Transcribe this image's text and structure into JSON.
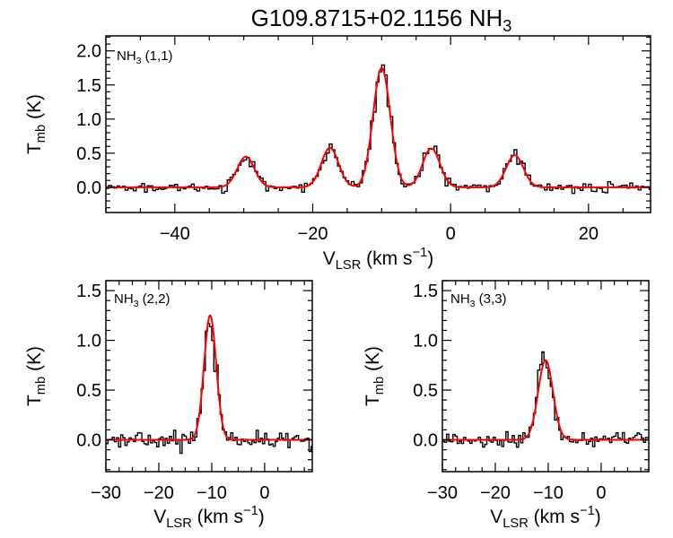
{
  "figure": {
    "title": "G109.8715+02.1156 NH",
    "title_sub": "3"
  },
  "colors": {
    "data": "#000000",
    "fit": "#ff0000"
  },
  "chart_data": [
    {
      "type": "line",
      "id": "p11",
      "label_main": "NH",
      "label_sub": "3",
      "label_rest": " (1,1)",
      "ylabel_main": "T",
      "ylabel_sub": "mb",
      "ylabel_rest": " (K)",
      "xlabel_main": "V",
      "xlabel_sub": "LSR",
      "xlabel_rest": " (km s",
      "xlabel_sup": "−1",
      "xlabel_end": ")",
      "xlim": [
        -50,
        29
      ],
      "ylim": [
        -0.37,
        2.22
      ],
      "xticks": [
        -40,
        -20,
        0,
        20
      ],
      "xtick_labels": [
        "−40",
        "−20",
        "0",
        "20"
      ],
      "yticks": [
        0.0,
        0.5,
        1.0,
        1.5,
        2.0
      ],
      "ytick_labels": [
        "0.0",
        "0.5",
        "1.0",
        "1.5",
        "2.0"
      ],
      "components": [
        {
          "v": -29.7,
          "amp": 0.45,
          "sigma": 1.25
        },
        {
          "v": -17.5,
          "amp": 0.58,
          "sigma": 1.25
        },
        {
          "v": -10.0,
          "amp": 1.75,
          "sigma": 1.25
        },
        {
          "v": -2.8,
          "amp": 0.57,
          "sigma": 1.25
        },
        {
          "v": 9.3,
          "amp": 0.47,
          "sigma": 1.25
        }
      ],
      "spectrum_channel_width_kms": 0.4,
      "spectrum_rms_K": 0.035
    },
    {
      "type": "line",
      "id": "p22",
      "label_main": "NH",
      "label_sub": "3",
      "label_rest": " (2,2)",
      "ylabel_main": "T",
      "ylabel_sub": "mb",
      "ylabel_rest": " (K)",
      "xlabel_main": "V",
      "xlabel_sub": "LSR",
      "xlabel_rest": " (km s",
      "xlabel_sup": "−1",
      "xlabel_end": ")",
      "xlim": [
        -30,
        9
      ],
      "ylim": [
        -0.32,
        1.6
      ],
      "xticks": [
        -30,
        -20,
        -10,
        0
      ],
      "xtick_labels": [
        "−30",
        "−20",
        "−10",
        "0"
      ],
      "yticks": [
        0.0,
        0.5,
        1.0,
        1.5
      ],
      "ytick_labels": [
        "0.0",
        "0.5",
        "1.0",
        "1.5"
      ],
      "components": [
        {
          "v": -10.3,
          "amp": 1.25,
          "sigma": 1.15
        }
      ],
      "spectrum_channel_width_kms": 0.4,
      "spectrum_rms_K": 0.045
    },
    {
      "type": "line",
      "id": "p33",
      "label_main": "NH",
      "label_sub": "3",
      "label_rest": " (3,3)",
      "ylabel_main": "T",
      "ylabel_sub": "mb",
      "ylabel_rest": " (K)",
      "xlabel_main": "V",
      "xlabel_sub": "LSR",
      "xlabel_rest": " (km s",
      "xlabel_sup": "−1",
      "xlabel_end": ")",
      "xlim": [
        -30,
        9
      ],
      "ylim": [
        -0.32,
        1.6
      ],
      "xticks": [
        -30,
        -20,
        -10,
        0
      ],
      "xtick_labels": [
        "−30",
        "−20",
        "−10",
        "0"
      ],
      "yticks": [
        0.0,
        0.5,
        1.0,
        1.5
      ],
      "ytick_labels": [
        "0.0",
        "0.5",
        "1.0",
        "1.5"
      ],
      "components": [
        {
          "v": -10.5,
          "amp": 0.8,
          "sigma": 1.4
        }
      ],
      "spectrum_channel_width_kms": 0.4,
      "spectrum_rms_K": 0.04
    }
  ]
}
